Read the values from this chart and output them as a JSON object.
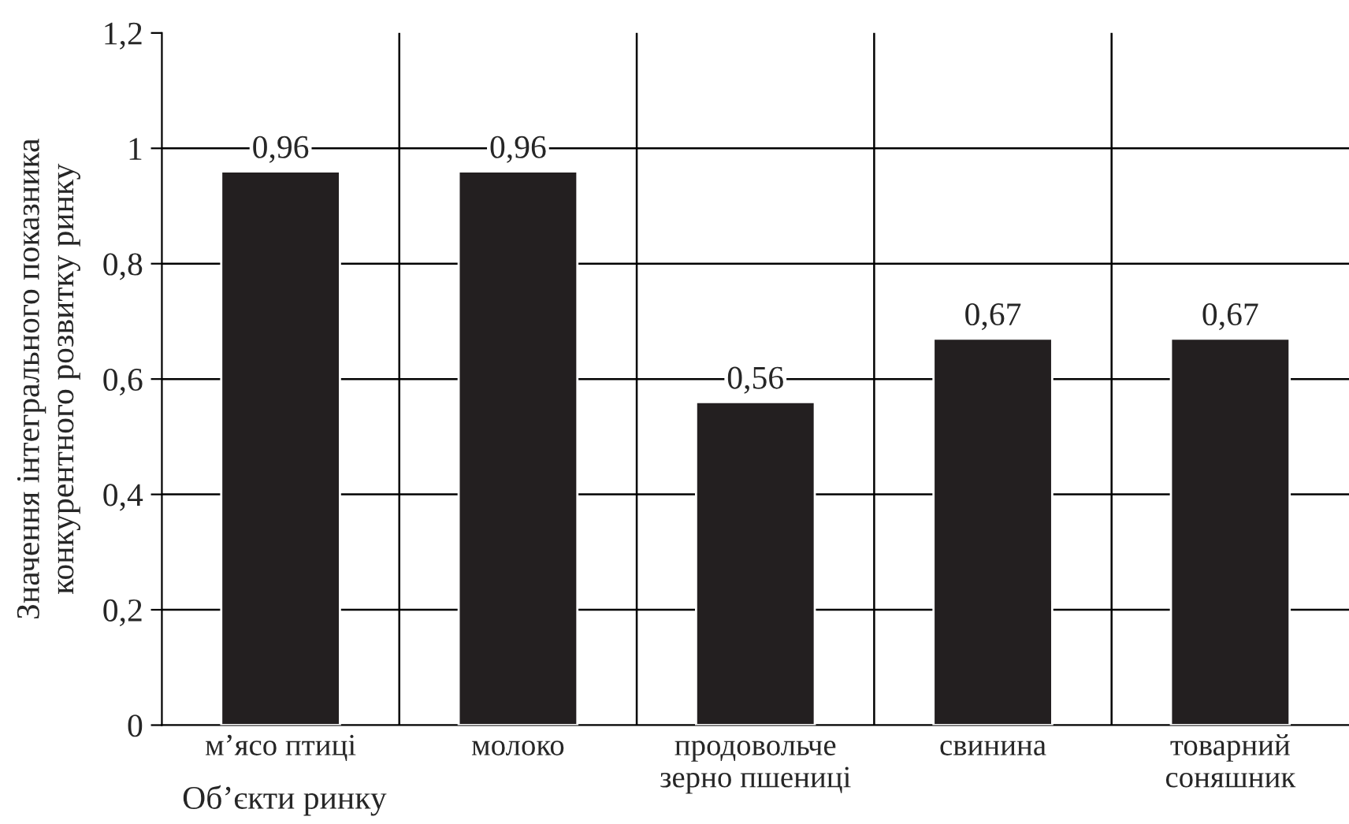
{
  "chart_data": {
    "type": "bar",
    "ylabel": "Значення інтегрального показника\nконкурентного розвитку ринку",
    "xlabel": "Об’єкти ринку",
    "categories": [
      "м’ясо птиці",
      "молоко",
      "продовольче\nзерно пшениці",
      "свинина",
      "товарний\nсоняшник"
    ],
    "values": [
      0.96,
      0.96,
      0.56,
      0.67,
      0.67
    ],
    "value_labels": [
      "0,96",
      "0,96",
      "0,56",
      "0,67",
      "0,67"
    ],
    "color": "#231f20",
    "ylim": [
      0,
      1.2
    ],
    "yticks": [
      0,
      {
        "value": 0.2,
        "label": "0,2"
      },
      {
        "value": 0.4,
        "label": "0,4"
      },
      {
        "value": 0.6,
        "label": "0,6"
      },
      {
        "value": 0.8,
        "label": "0,8"
      },
      1,
      {
        "value": 1.2,
        "label": "1,2"
      }
    ],
    "grid": true
  }
}
